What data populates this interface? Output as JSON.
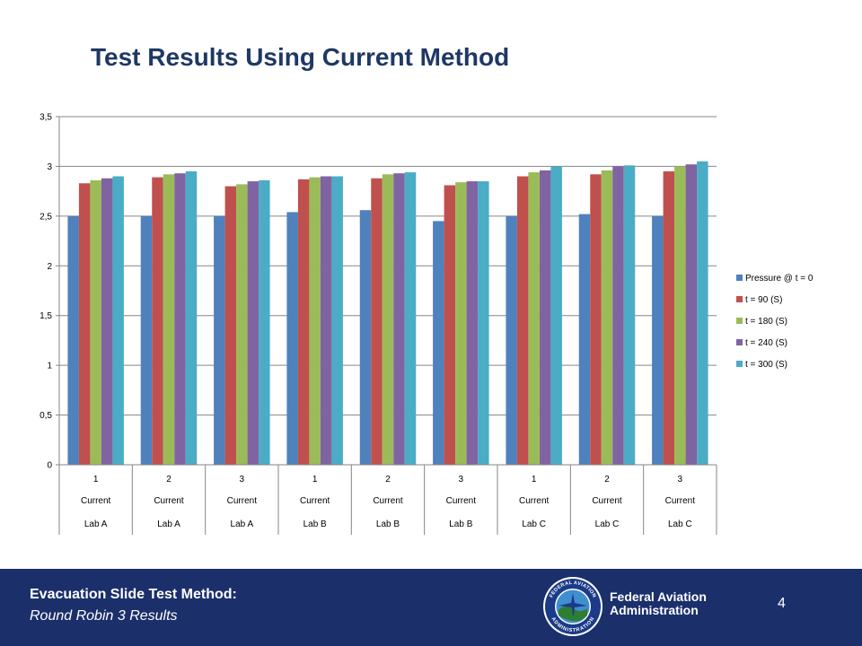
{
  "slide": {
    "title": "Test Results Using Current Method",
    "page_number": "4"
  },
  "footer": {
    "heading": "Evacuation Slide Test Method:",
    "subheading": "Round Robin 3 Results",
    "agency_line1": "Federal Aviation",
    "agency_line2": "Administration",
    "seal_text_top": "FEDERAL AVIATION",
    "seal_text_bottom": "ADMINISTRATION"
  },
  "colors": {
    "title": "#1f3864",
    "footer_bg": "#1b2f6b",
    "series": [
      "#4f81bd",
      "#c0504d",
      "#9bbb59",
      "#8064a2",
      "#4bacc6"
    ]
  },
  "chart_data": {
    "type": "bar",
    "title": "",
    "xlabel": "",
    "ylabel": "",
    "ylim": [
      0,
      3.5
    ],
    "yticks": [
      "0",
      "0,5",
      "1",
      "1,5",
      "2",
      "2,5",
      "3",
      "3,5"
    ],
    "categories": [
      [
        "1",
        "Current",
        "Lab A"
      ],
      [
        "2",
        "Current",
        "Lab A"
      ],
      [
        "3",
        "Current",
        "Lab A"
      ],
      [
        "1",
        "Current",
        "Lab B"
      ],
      [
        "2",
        "Current",
        "Lab B"
      ],
      [
        "3",
        "Current",
        "Lab B"
      ],
      [
        "1",
        "Current",
        "Lab C"
      ],
      [
        "2",
        "Current",
        "Lab C"
      ],
      [
        "3",
        "Current",
        "Lab C"
      ]
    ],
    "series": [
      {
        "name": "Pressure @ t = 0",
        "color": "#4f81bd",
        "values": [
          2.5,
          2.5,
          2.5,
          2.54,
          2.56,
          2.45,
          2.5,
          2.52,
          2.5
        ]
      },
      {
        "name": "t = 90 (S)",
        "color": "#c0504d",
        "values": [
          2.83,
          2.89,
          2.8,
          2.87,
          2.88,
          2.81,
          2.9,
          2.92,
          2.95
        ]
      },
      {
        "name": "t = 180 (S)",
        "color": "#9bbb59",
        "values": [
          2.86,
          2.92,
          2.82,
          2.89,
          2.92,
          2.84,
          2.94,
          2.96,
          3.0
        ]
      },
      {
        "name": "t = 240 (S)",
        "color": "#8064a2",
        "values": [
          2.88,
          2.93,
          2.85,
          2.9,
          2.93,
          2.85,
          2.96,
          3.0,
          3.02
        ]
      },
      {
        "name": "t = 300 (S)",
        "color": "#4bacc6",
        "values": [
          2.9,
          2.95,
          2.86,
          2.9,
          2.94,
          2.85,
          3.0,
          3.01,
          3.05
        ]
      }
    ],
    "grid": true,
    "legend": "right"
  }
}
